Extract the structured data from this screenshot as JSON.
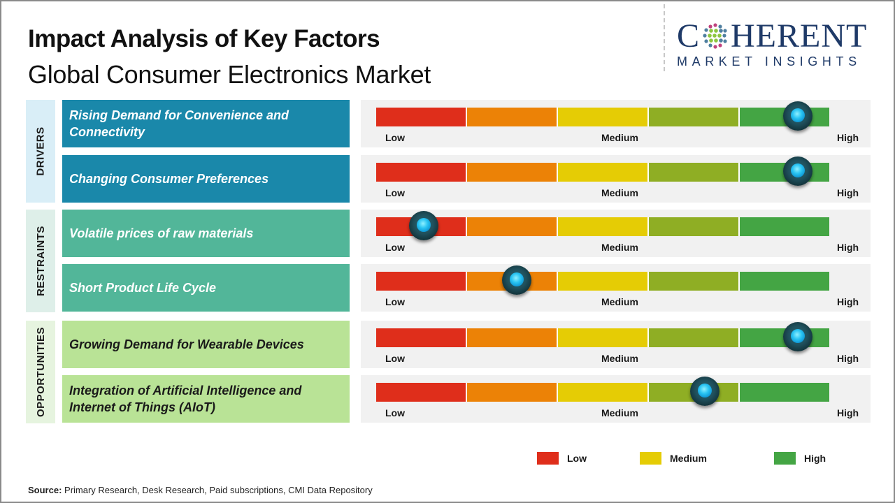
{
  "header": {
    "title": "Impact Analysis of Key Factors",
    "subtitle": "Global Consumer Electronics Market"
  },
  "logo": {
    "main_left": "C",
    "main_right": "HERENT",
    "sub": "MARKET INSIGHTS"
  },
  "categories": [
    {
      "label": "DRIVERS",
      "bg": "#d9eef7"
    },
    {
      "label": "RESTRAINTS",
      "bg": "#deefe9"
    },
    {
      "label": "OPPORTUNITIES",
      "bg": "#e6f4df"
    }
  ],
  "scale_labels": {
    "low": "Low",
    "medium": "Medium",
    "high": "High"
  },
  "segment_colors": [
    "#df2e1b",
    "#ec8206",
    "#e5cc05",
    "#8fae24",
    "#44a544"
  ],
  "knob_icon": "slider-knob",
  "legend": [
    {
      "label": "Low",
      "color": "#df2e1b"
    },
    {
      "label": "Medium",
      "color": "#e5cc05"
    },
    {
      "label": "High",
      "color": "#44a544"
    }
  ],
  "source": {
    "prefix": "Source:",
    "text": " Primary Research, Desk Research, Paid subscriptions, CMI Data Repository"
  },
  "chart_data": {
    "type": "table",
    "title": "Impact Analysis of Key Factors",
    "subtitle": "Global Consumer Electronics Market",
    "scale": {
      "min": 0,
      "max": 100,
      "labels": [
        "Low",
        "Medium",
        "High"
      ],
      "segments": 5
    },
    "rows": [
      {
        "category": "DRIVERS",
        "factor": "Rising Demand for Convenience and Connectivity",
        "impact": "High",
        "position_pct": 93,
        "color": "#1a88aa",
        "text_color": "#ffffff"
      },
      {
        "category": "DRIVERS",
        "factor": "Changing Consumer Preferences",
        "impact": "High",
        "position_pct": 93,
        "color": "#1a88aa",
        "text_color": "#ffffff"
      },
      {
        "category": "RESTRAINTS",
        "factor": "Volatile prices of raw materials",
        "impact": "Low",
        "position_pct": 10.5,
        "color": "#52b699",
        "text_color": "#ffffff"
      },
      {
        "category": "RESTRAINTS",
        "factor": "Short Product Life Cycle",
        "impact": "Medium-Low",
        "position_pct": 31,
        "color": "#52b699",
        "text_color": "#ffffff"
      },
      {
        "category": "OPPORTUNITIES",
        "factor": "Growing Demand for Wearable Devices",
        "impact": "High",
        "position_pct": 93,
        "color": "#b9e396",
        "text_color": "#1a1a1a"
      },
      {
        "category": "OPPORTUNITIES",
        "factor": "Integration of Artificial Intelligence and Internet of Things (AIoT)",
        "impact": "Medium-High",
        "position_pct": 72.5,
        "color": "#b9e396",
        "text_color": "#1a1a1a"
      }
    ],
    "legend": [
      "Low",
      "Medium",
      "High"
    ],
    "legend_position": "bottom-right"
  }
}
